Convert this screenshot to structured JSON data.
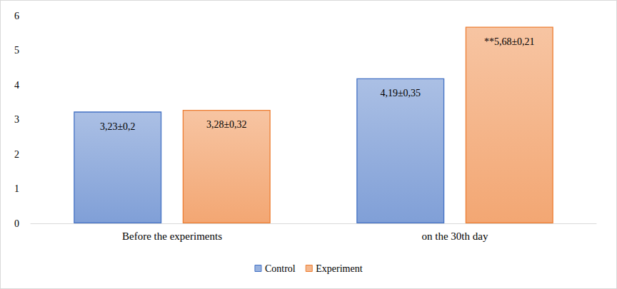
{
  "chart_data": {
    "type": "bar",
    "categories": [
      "Before the experiments",
      "on the 30th day"
    ],
    "series": [
      {
        "name": "Control",
        "color": "#4472c4",
        "values": [
          3.23,
          4.19
        ],
        "value_labels": [
          "3,23±0,2",
          "4,19±0,35"
        ]
      },
      {
        "name": "Experiment",
        "color": "#ed7d31",
        "values": [
          3.28,
          5.68
        ],
        "value_labels": [
          "3,28±0,32",
          "**5,68±0,21"
        ]
      }
    ],
    "ylim": [
      0,
      6
    ],
    "yticks": [
      0,
      1,
      2,
      3,
      4,
      5,
      6
    ],
    "grid": false,
    "legend": "bottom",
    "data_labels": true
  }
}
